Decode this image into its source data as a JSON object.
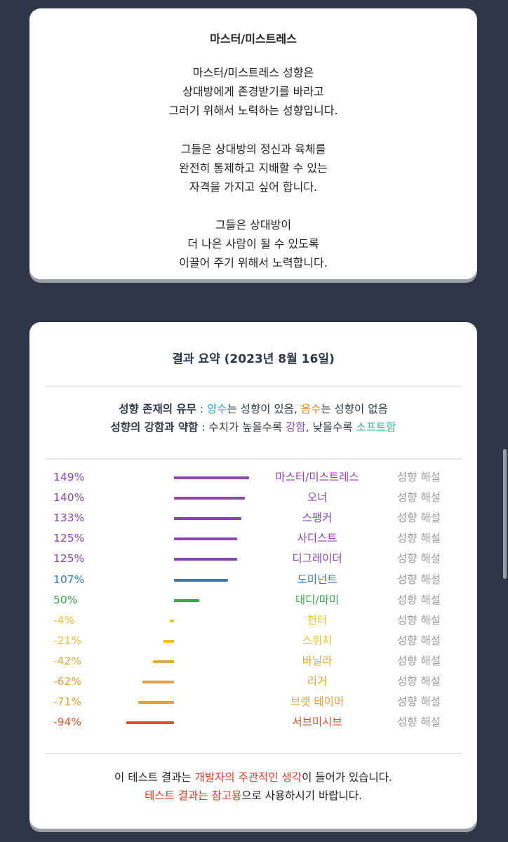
{
  "card1": {
    "title": "마스터/미스트레스",
    "para1": [
      "마스터/미스트레스 성향은",
      "상대방에게 존경받기를 바라고",
      "그러기 위해서 노력하는 성향입니다."
    ],
    "para2": [
      "그들은 상대방의 정신과 육체를",
      "완전히 통제하고 지배할 수 있는",
      "자격을 가지고 싶어 합니다."
    ],
    "para3": [
      "그들은 상대방이",
      "더 나은 사람이 될 수 있도록",
      "이끌어 주기 위해서 노력합니다."
    ]
  },
  "card2": {
    "title": "결과 요약 (2023년 8월 16일)",
    "legend1": {
      "label": "성향 존재의 유무",
      "sep": " : ",
      "yang": "양수",
      "mid": "는 성향이 있음, ",
      "eum": "음수",
      "end": "는 성향이 없음"
    },
    "legend2": {
      "label": "성향의 강함과 약함",
      "sep": " : ",
      "mid": "수치가 높을수록 ",
      "strong": "강함",
      "mid2": ", 낮을수록 ",
      "soft": "소프트함"
    },
    "rows": [
      {
        "pct": "149%",
        "value": 149,
        "name": "마스터/미스트레스",
        "desc": "성향 해설",
        "color": "#8e44ad"
      },
      {
        "pct": "140%",
        "value": 140,
        "name": "오너",
        "desc": "성향 해설",
        "color": "#8e44ad"
      },
      {
        "pct": "133%",
        "value": 133,
        "name": "스팽커",
        "desc": "성향 해설",
        "color": "#8e44ad"
      },
      {
        "pct": "125%",
        "value": 125,
        "name": "사디스트",
        "desc": "성향 해설",
        "color": "#8e44ad"
      },
      {
        "pct": "125%",
        "value": 125,
        "name": "디그레이더",
        "desc": "성향 해설",
        "color": "#8e44ad"
      },
      {
        "pct": "107%",
        "value": 107,
        "name": "도미넌트",
        "desc": "성향 해설",
        "color": "#3b78b0"
      },
      {
        "pct": "50%",
        "value": 50,
        "name": "대디/마미",
        "desc": "성향 해설",
        "color": "#3ea34f"
      },
      {
        "pct": "-4%",
        "value": -4,
        "name": "헌터",
        "desc": "성향 해설",
        "color": "#f0c030"
      },
      {
        "pct": "-21%",
        "value": -21,
        "name": "스위치",
        "desc": "성향 해설",
        "color": "#f0c030"
      },
      {
        "pct": "-42%",
        "value": -42,
        "name": "바닐라",
        "desc": "성향 해설",
        "color": "#e5a838"
      },
      {
        "pct": "-62%",
        "value": -62,
        "name": "리거",
        "desc": "성향 해설",
        "color": "#e5a038"
      },
      {
        "pct": "-71%",
        "value": -71,
        "name": "브랫 테이머",
        "desc": "성향 해설",
        "color": "#e5a038"
      },
      {
        "pct": "-94%",
        "value": -94,
        "name": "서브미시브",
        "desc": "성향 해설",
        "color": "#d9532c"
      }
    ],
    "footer1": {
      "pre": "이 테스트 결과는 ",
      "red": "개발자의 주관적인 생각",
      "post": "이 들어가 있습니다."
    },
    "footer2": {
      "red": "테스트 결과는 참고용",
      "post": "으로 사용하시기 바랍니다."
    }
  },
  "colors": {
    "background": "#2d3748",
    "positive": "#3b9bd8",
    "negative": "#e08a2a",
    "strong": "#8e44ad",
    "soft": "#3cb389",
    "warning": "#d83b2d"
  }
}
